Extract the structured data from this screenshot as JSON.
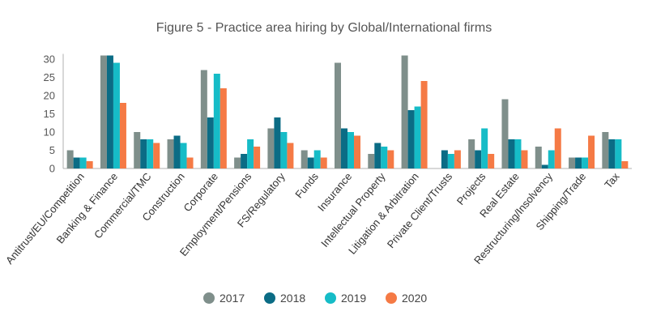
{
  "chart_data": {
    "type": "bar",
    "title": "Figure 5 - Practice area hiring by Global/International firms",
    "xlabel": "",
    "ylabel": "",
    "ylim": [
      0,
      31
    ],
    "yticks": [
      0,
      5,
      10,
      15,
      20,
      25,
      30
    ],
    "grid": false,
    "legend_position": "bottom",
    "categories": [
      "Antitrust/EU/Competition",
      "Banking & Finance",
      "Commercial/TMC",
      "Construction",
      "Corporate",
      "Employment/Pensions",
      "FS/Regulatory",
      "Funds",
      "Insurance",
      "Intellectual Property",
      "Litigation & Arbitration",
      "Private Client/Trusts",
      "Projects",
      "Real Estate",
      "Restructuring/Insolvency",
      "Shipping/Trade",
      "Tax"
    ],
    "series": [
      {
        "name": "2017",
        "color": "#7f8f8b",
        "values": [
          5,
          31,
          10,
          8,
          27,
          3,
          11,
          5,
          29,
          4,
          31,
          0,
          8,
          19,
          6,
          3,
          10
        ]
      },
      {
        "name": "2018",
        "color": "#0b6c85",
        "values": [
          3,
          31,
          8,
          9,
          14,
          4,
          14,
          3,
          11,
          7,
          16,
          5,
          5,
          8,
          1,
          3,
          8
        ]
      },
      {
        "name": "2019",
        "color": "#16bcc7",
        "values": [
          3,
          29,
          8,
          7,
          26,
          8,
          10,
          5,
          10,
          6,
          17,
          4,
          11,
          8,
          5,
          3,
          8
        ]
      },
      {
        "name": "2020",
        "color": "#f57a45",
        "values": [
          2,
          18,
          7,
          3,
          22,
          6,
          7,
          3,
          9,
          5,
          24,
          5,
          4,
          5,
          11,
          9,
          2
        ]
      }
    ]
  }
}
